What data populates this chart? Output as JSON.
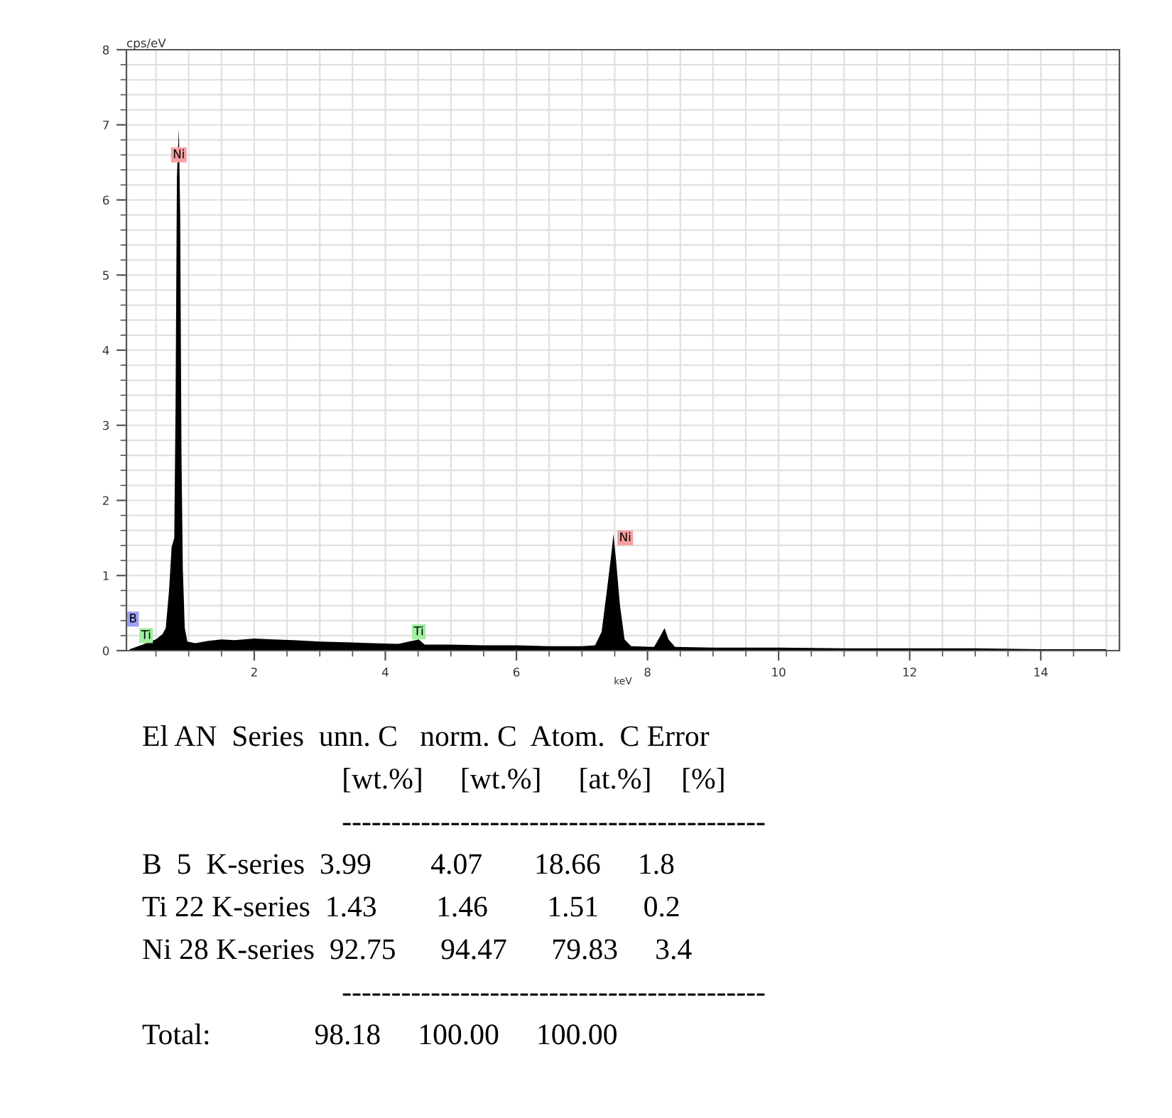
{
  "chart_data": {
    "type": "area",
    "ylabel": "cps/eV",
    "xlabel": "keV",
    "x": [
      0.1,
      0.2,
      0.3,
      0.4,
      0.5,
      0.6,
      0.65,
      0.7,
      0.74,
      0.78,
      0.8,
      0.82,
      0.85,
      0.87,
      0.89,
      0.91,
      0.94,
      0.98,
      1.1,
      1.3,
      1.5,
      1.7,
      2.0,
      2.3,
      2.6,
      3.0,
      3.4,
      3.8,
      4.2,
      4.51,
      4.6,
      5.0,
      5.5,
      6.0,
      6.5,
      7.0,
      7.2,
      7.3,
      7.38,
      7.45,
      7.48,
      7.52,
      7.58,
      7.65,
      7.75,
      8.1,
      8.2,
      8.26,
      8.32,
      8.42,
      9.0,
      10,
      11,
      12,
      13,
      14,
      15
    ],
    "series": [
      {
        "color": "#000000",
        "values": [
          0.02,
          0.05,
          0.08,
          0.12,
          0.15,
          0.22,
          0.3,
          0.8,
          1.38,
          1.5,
          3.3,
          6.3,
          6.95,
          5.8,
          2.6,
          1.1,
          0.3,
          0.12,
          0.1,
          0.13,
          0.15,
          0.14,
          0.16,
          0.15,
          0.14,
          0.12,
          0.11,
          0.1,
          0.09,
          0.15,
          0.08,
          0.08,
          0.07,
          0.07,
          0.06,
          0.06,
          0.07,
          0.25,
          0.8,
          1.3,
          1.55,
          1.2,
          0.6,
          0.15,
          0.06,
          0.05,
          0.2,
          0.3,
          0.15,
          0.05,
          0.04,
          0.04,
          0.03,
          0.03,
          0.03,
          0.02,
          0.02
        ]
      }
    ],
    "xlim": [
      0.05,
      15.2
    ],
    "ylim": [
      0,
      8
    ],
    "xticks": [
      2,
      4,
      6,
      8,
      10,
      12,
      14
    ],
    "yticks": [
      0,
      1,
      2,
      3,
      4,
      5,
      6,
      7,
      8
    ],
    "grid": true,
    "legend": false,
    "annotations": [
      {
        "text": "Ni",
        "x": 0.85,
        "y": 6.6
      },
      {
        "text": "Ni",
        "x": 7.66,
        "y": 1.5
      },
      {
        "text": "B",
        "x": 0.15,
        "y": 0.42
      },
      {
        "text": "Ti",
        "x": 0.35,
        "y": 0.2
      },
      {
        "text": "Ti",
        "x": 4.51,
        "y": 0.25
      },
      "El AN  Series  unn. C   norm. C  Atom.  C Error",
      "                           [wt.%]     [wt.%]     [at.%]    [%]",
      "                           -------------------------------------------",
      "B  5  K-series  3.99        4.07       18.66     1.8",
      "Ti 22 K-series  1.43        1.46        1.51      0.2",
      "Ni 28 K-series  92.75      94.47      79.83     3.4",
      "                           -------------------------------------------",
      "Total:              98.18     100.00     100.00"
    ]
  }
}
